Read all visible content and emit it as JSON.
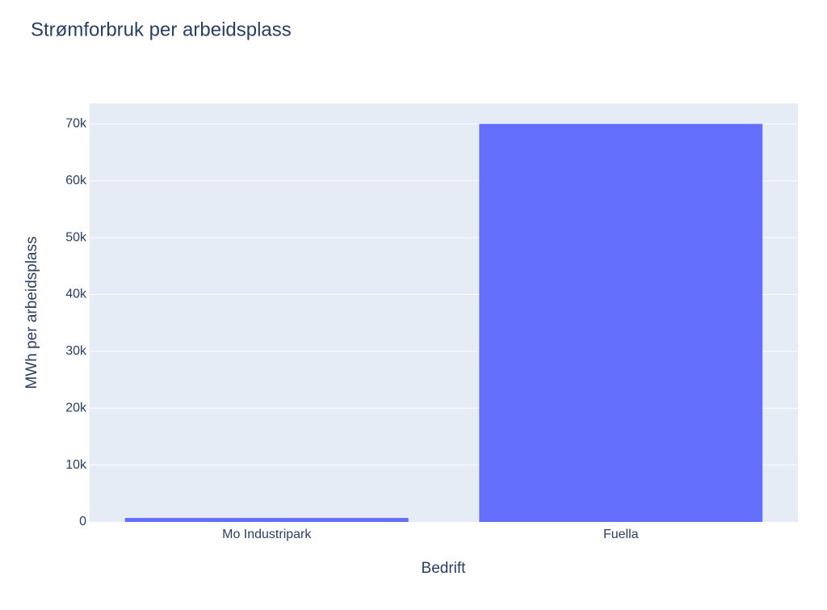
{
  "chart_data": {
    "type": "bar",
    "title": "Strømforbruk per arbeidsplass",
    "x_label": "Bedrift",
    "y_label": "MWh per arbeidsplass",
    "categories": [
      "Mo Industripark",
      "Fuella"
    ],
    "values": [
      700,
      70000
    ],
    "color": "#636efa",
    "ylim": [
      0,
      73600
    ],
    "yticks": [
      0,
      {
        "value": 10000,
        "label": "10k"
      },
      {
        "value": 20000,
        "label": "20k"
      },
      {
        "value": 30000,
        "label": "30k"
      },
      {
        "value": 40000,
        "label": "40k"
      },
      {
        "value": 50000,
        "label": "50k"
      },
      {
        "value": 60000,
        "label": "60k"
      },
      {
        "value": 70000,
        "label": "70k"
      }
    ],
    "grid": true
  }
}
